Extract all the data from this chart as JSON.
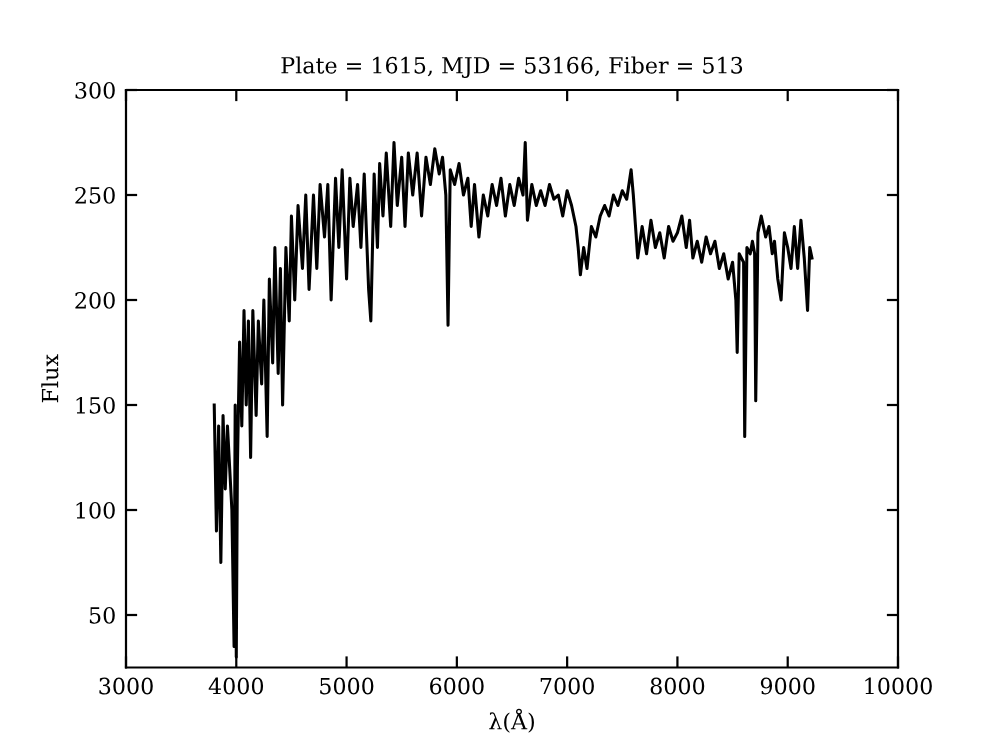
{
  "chart_data": {
    "type": "line",
    "title": "Plate = 1615, MJD = 53166, Fiber = 513",
    "xlabel": "λ(Å)",
    "ylabel": "Flux",
    "xlim": [
      3000,
      10000
    ],
    "xticks": [
      3000,
      4000,
      5000,
      6000,
      7000,
      8000,
      9000,
      10000
    ],
    "ylim": [
      25,
      300
    ],
    "yticks": [
      50,
      100,
      150,
      200,
      250,
      300
    ],
    "grid": false,
    "legend": false,
    "marker": "none",
    "line_style": "solid",
    "series": [
      {
        "color": "#000000",
        "x": [
          3800,
          3820,
          3840,
          3860,
          3880,
          3900,
          3920,
          3940,
          3960,
          3980,
          3990,
          4000,
          4010,
          4030,
          4050,
          4070,
          4090,
          4110,
          4130,
          4150,
          4180,
          4200,
          4230,
          4250,
          4280,
          4300,
          4330,
          4350,
          4380,
          4400,
          4420,
          4450,
          4480,
          4500,
          4530,
          4560,
          4600,
          4630,
          4660,
          4700,
          4730,
          4760,
          4800,
          4830,
          4860,
          4900,
          4930,
          4960,
          5000,
          5030,
          5060,
          5100,
          5130,
          5160,
          5200,
          5220,
          5250,
          5280,
          5300,
          5330,
          5360,
          5400,
          5430,
          5460,
          5500,
          5530,
          5560,
          5600,
          5640,
          5680,
          5720,
          5760,
          5800,
          5840,
          5870,
          5900,
          5920,
          5940,
          5980,
          6020,
          6060,
          6100,
          6130,
          6160,
          6200,
          6240,
          6280,
          6320,
          6360,
          6400,
          6440,
          6480,
          6520,
          6560,
          6600,
          6620,
          6640,
          6680,
          6720,
          6760,
          6800,
          6840,
          6880,
          6920,
          6960,
          7000,
          7040,
          7080,
          7100,
          7120,
          7150,
          7180,
          7220,
          7260,
          7300,
          7340,
          7380,
          7420,
          7460,
          7500,
          7540,
          7580,
          7600,
          7620,
          7640,
          7680,
          7720,
          7760,
          7800,
          7840,
          7880,
          7920,
          7960,
          8000,
          8040,
          8080,
          8110,
          8140,
          8180,
          8220,
          8260,
          8300,
          8340,
          8380,
          8420,
          8460,
          8500,
          8530,
          8542,
          8560,
          8600,
          8610,
          8630,
          8660,
          8680,
          8700,
          8710,
          8730,
          8760,
          8800,
          8830,
          8860,
          8880,
          8910,
          8940,
          8970,
          9000,
          9030,
          9060,
          9090,
          9120,
          9150,
          9180,
          9200,
          9220
        ],
        "values": [
          150,
          90,
          140,
          75,
          145,
          110,
          140,
          120,
          100,
          35,
          150,
          30,
          120,
          180,
          140,
          195,
          150,
          190,
          125,
          195,
          145,
          190,
          160,
          200,
          135,
          210,
          170,
          225,
          165,
          215,
          150,
          225,
          190,
          240,
          200,
          245,
          215,
          250,
          205,
          250,
          215,
          255,
          230,
          255,
          200,
          258,
          225,
          262,
          210,
          258,
          235,
          255,
          225,
          260,
          205,
          190,
          260,
          225,
          265,
          240,
          270,
          235,
          275,
          245,
          268,
          235,
          270,
          250,
          270,
          240,
          268,
          255,
          272,
          260,
          268,
          250,
          188,
          262,
          255,
          265,
          250,
          258,
          235,
          255,
          230,
          250,
          240,
          255,
          245,
          258,
          240,
          255,
          245,
          258,
          250,
          275,
          238,
          255,
          245,
          252,
          245,
          255,
          248,
          250,
          240,
          252,
          245,
          235,
          225,
          212,
          225,
          215,
          235,
          230,
          240,
          245,
          240,
          250,
          245,
          252,
          248,
          262,
          250,
          235,
          220,
          235,
          222,
          238,
          225,
          232,
          220,
          235,
          228,
          232,
          240,
          225,
          238,
          220,
          228,
          218,
          230,
          222,
          228,
          215,
          222,
          210,
          218,
          200,
          175,
          222,
          218,
          135,
          225,
          222,
          228,
          222,
          152,
          232,
          240,
          230,
          235,
          222,
          228,
          210,
          200,
          232,
          225,
          215,
          235,
          215,
          238,
          220,
          195,
          225,
          220
        ]
      }
    ]
  }
}
